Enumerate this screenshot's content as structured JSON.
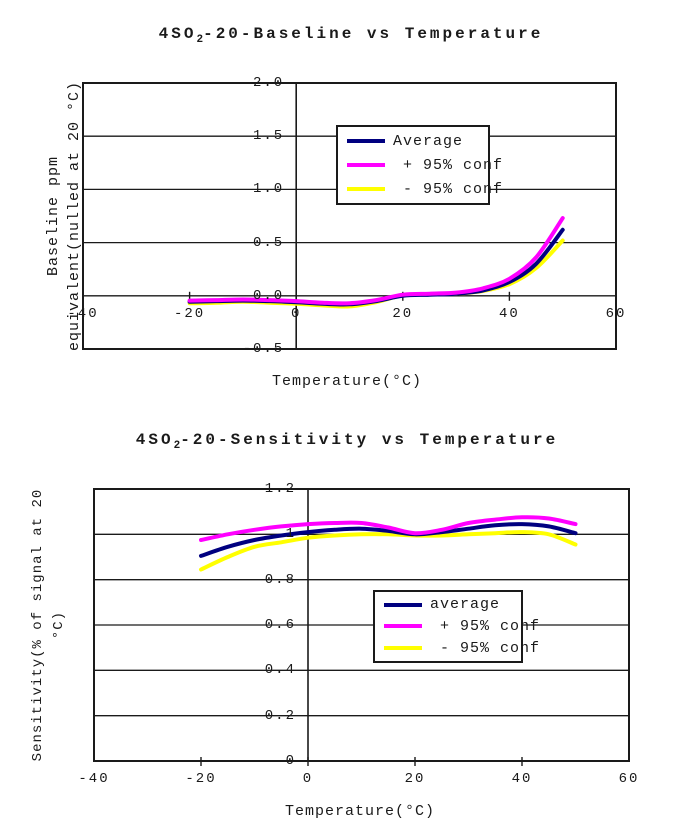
{
  "charts": [
    {
      "title": {
        "pre": "4SO",
        "sub": "2",
        "post": "-20-Baseline vs Temperature"
      },
      "y_label_line1": "Baseline ppm",
      "y_label_line2": "equivalent(nulled at 20 °C)",
      "x_label": "Temperature(°C)",
      "legend_items": [
        {
          "label": "Average",
          "color": "#000080"
        },
        {
          "label": " + 95% conf",
          "color": "#FF00FF"
        },
        {
          "label": " - 95% conf",
          "color": "#FFFF00"
        }
      ]
    },
    {
      "title": {
        "pre": "4SO",
        "sub": "2",
        "post": "-20-Sensitivity vs Temperature"
      },
      "y_label_line1": "Sensitivity(% of signal at 20",
      "y_label_line2": "°C)",
      "x_label": "Temperature(°C)",
      "legend_items": [
        {
          "label": "average",
          "color": "#000080"
        },
        {
          "label": " + 95% conf",
          "color": "#FF00FF"
        },
        {
          "label": " - 95% conf",
          "color": "#FFFF00"
        }
      ]
    }
  ],
  "chart_data": [
    {
      "type": "line",
      "title": "4SO2-20-Baseline vs Temperature",
      "xlabel": "Temperature(°C)",
      "ylabel": "Baseline ppm equivalent(nulled at 20 °C)",
      "xlim": [
        -40,
        60
      ],
      "ylim": [
        -0.5,
        2.0
      ],
      "xticks": [
        -40,
        -20,
        0,
        20,
        40,
        60
      ],
      "yticks": [
        -0.5,
        0,
        0.5,
        1,
        1.5,
        2
      ],
      "ytick_labels": [
        "-0.5",
        "0.0",
        "0.5",
        "1.0",
        "1.5",
        "2.0"
      ],
      "grid": "horizontal",
      "legend_position": "upper-middle",
      "x": [
        -20,
        -15,
        -10,
        -5,
        0,
        5,
        10,
        15,
        20,
        25,
        30,
        35,
        40,
        45,
        50
      ],
      "series": [
        {
          "name": "Average",
          "color": "#000080",
          "values": [
            -0.055,
            -0.05,
            -0.045,
            -0.05,
            -0.06,
            -0.075,
            -0.08,
            -0.05,
            0.0,
            0.01,
            0.02,
            0.05,
            0.13,
            0.3,
            0.62
          ]
        },
        {
          "name": "+ 95% conf",
          "color": "#FF00FF",
          "values": [
            -0.045,
            -0.04,
            -0.035,
            -0.04,
            -0.05,
            -0.065,
            -0.07,
            -0.04,
            0.01,
            0.02,
            0.03,
            0.07,
            0.16,
            0.36,
            0.73
          ]
        },
        {
          "name": "- 95% conf",
          "color": "#FFFF00",
          "values": [
            -0.07,
            -0.065,
            -0.055,
            -0.065,
            -0.075,
            -0.09,
            -0.1,
            -0.06,
            0.005,
            0.015,
            0.02,
            0.045,
            0.11,
            0.26,
            0.52
          ]
        }
      ]
    },
    {
      "type": "line",
      "title": "4SO2-20-Sensitivity vs Temperature",
      "xlabel": "Temperature(°C)",
      "ylabel": "Sensitivity(% of signal at 20 °C)",
      "xlim": [
        -40,
        60
      ],
      "ylim": [
        0,
        1.2
      ],
      "xticks": [
        -40,
        -20,
        0,
        20,
        40,
        60
      ],
      "yticks": [
        0,
        0.2,
        0.4,
        0.6,
        0.8,
        1,
        1.2
      ],
      "ytick_labels": [
        "0",
        "0.2",
        "0.4",
        "0.6",
        "0.8",
        "1",
        "1.2"
      ],
      "grid": "horizontal",
      "legend_position": "middle-right",
      "x": [
        -20,
        -15,
        -10,
        -5,
        0,
        5,
        10,
        15,
        20,
        25,
        30,
        35,
        40,
        45,
        50
      ],
      "series": [
        {
          "name": "average",
          "color": "#000080",
          "values": [
            0.905,
            0.945,
            0.975,
            0.995,
            1.01,
            1.02,
            1.025,
            1.015,
            1.0,
            1.01,
            1.025,
            1.04,
            1.045,
            1.035,
            1.005
          ]
        },
        {
          "name": "+ 95% conf",
          "color": "#FF00FF",
          "values": [
            0.975,
            1.0,
            1.02,
            1.035,
            1.045,
            1.05,
            1.05,
            1.03,
            1.005,
            1.02,
            1.05,
            1.065,
            1.075,
            1.07,
            1.045
          ]
        },
        {
          "name": "- 95% conf",
          "color": "#FFFF00",
          "values": [
            0.845,
            0.9,
            0.945,
            0.965,
            0.985,
            0.995,
            1.0,
            1.0,
            0.995,
            0.995,
            1.0,
            1.005,
            1.01,
            1.0,
            0.955
          ]
        }
      ]
    }
  ]
}
